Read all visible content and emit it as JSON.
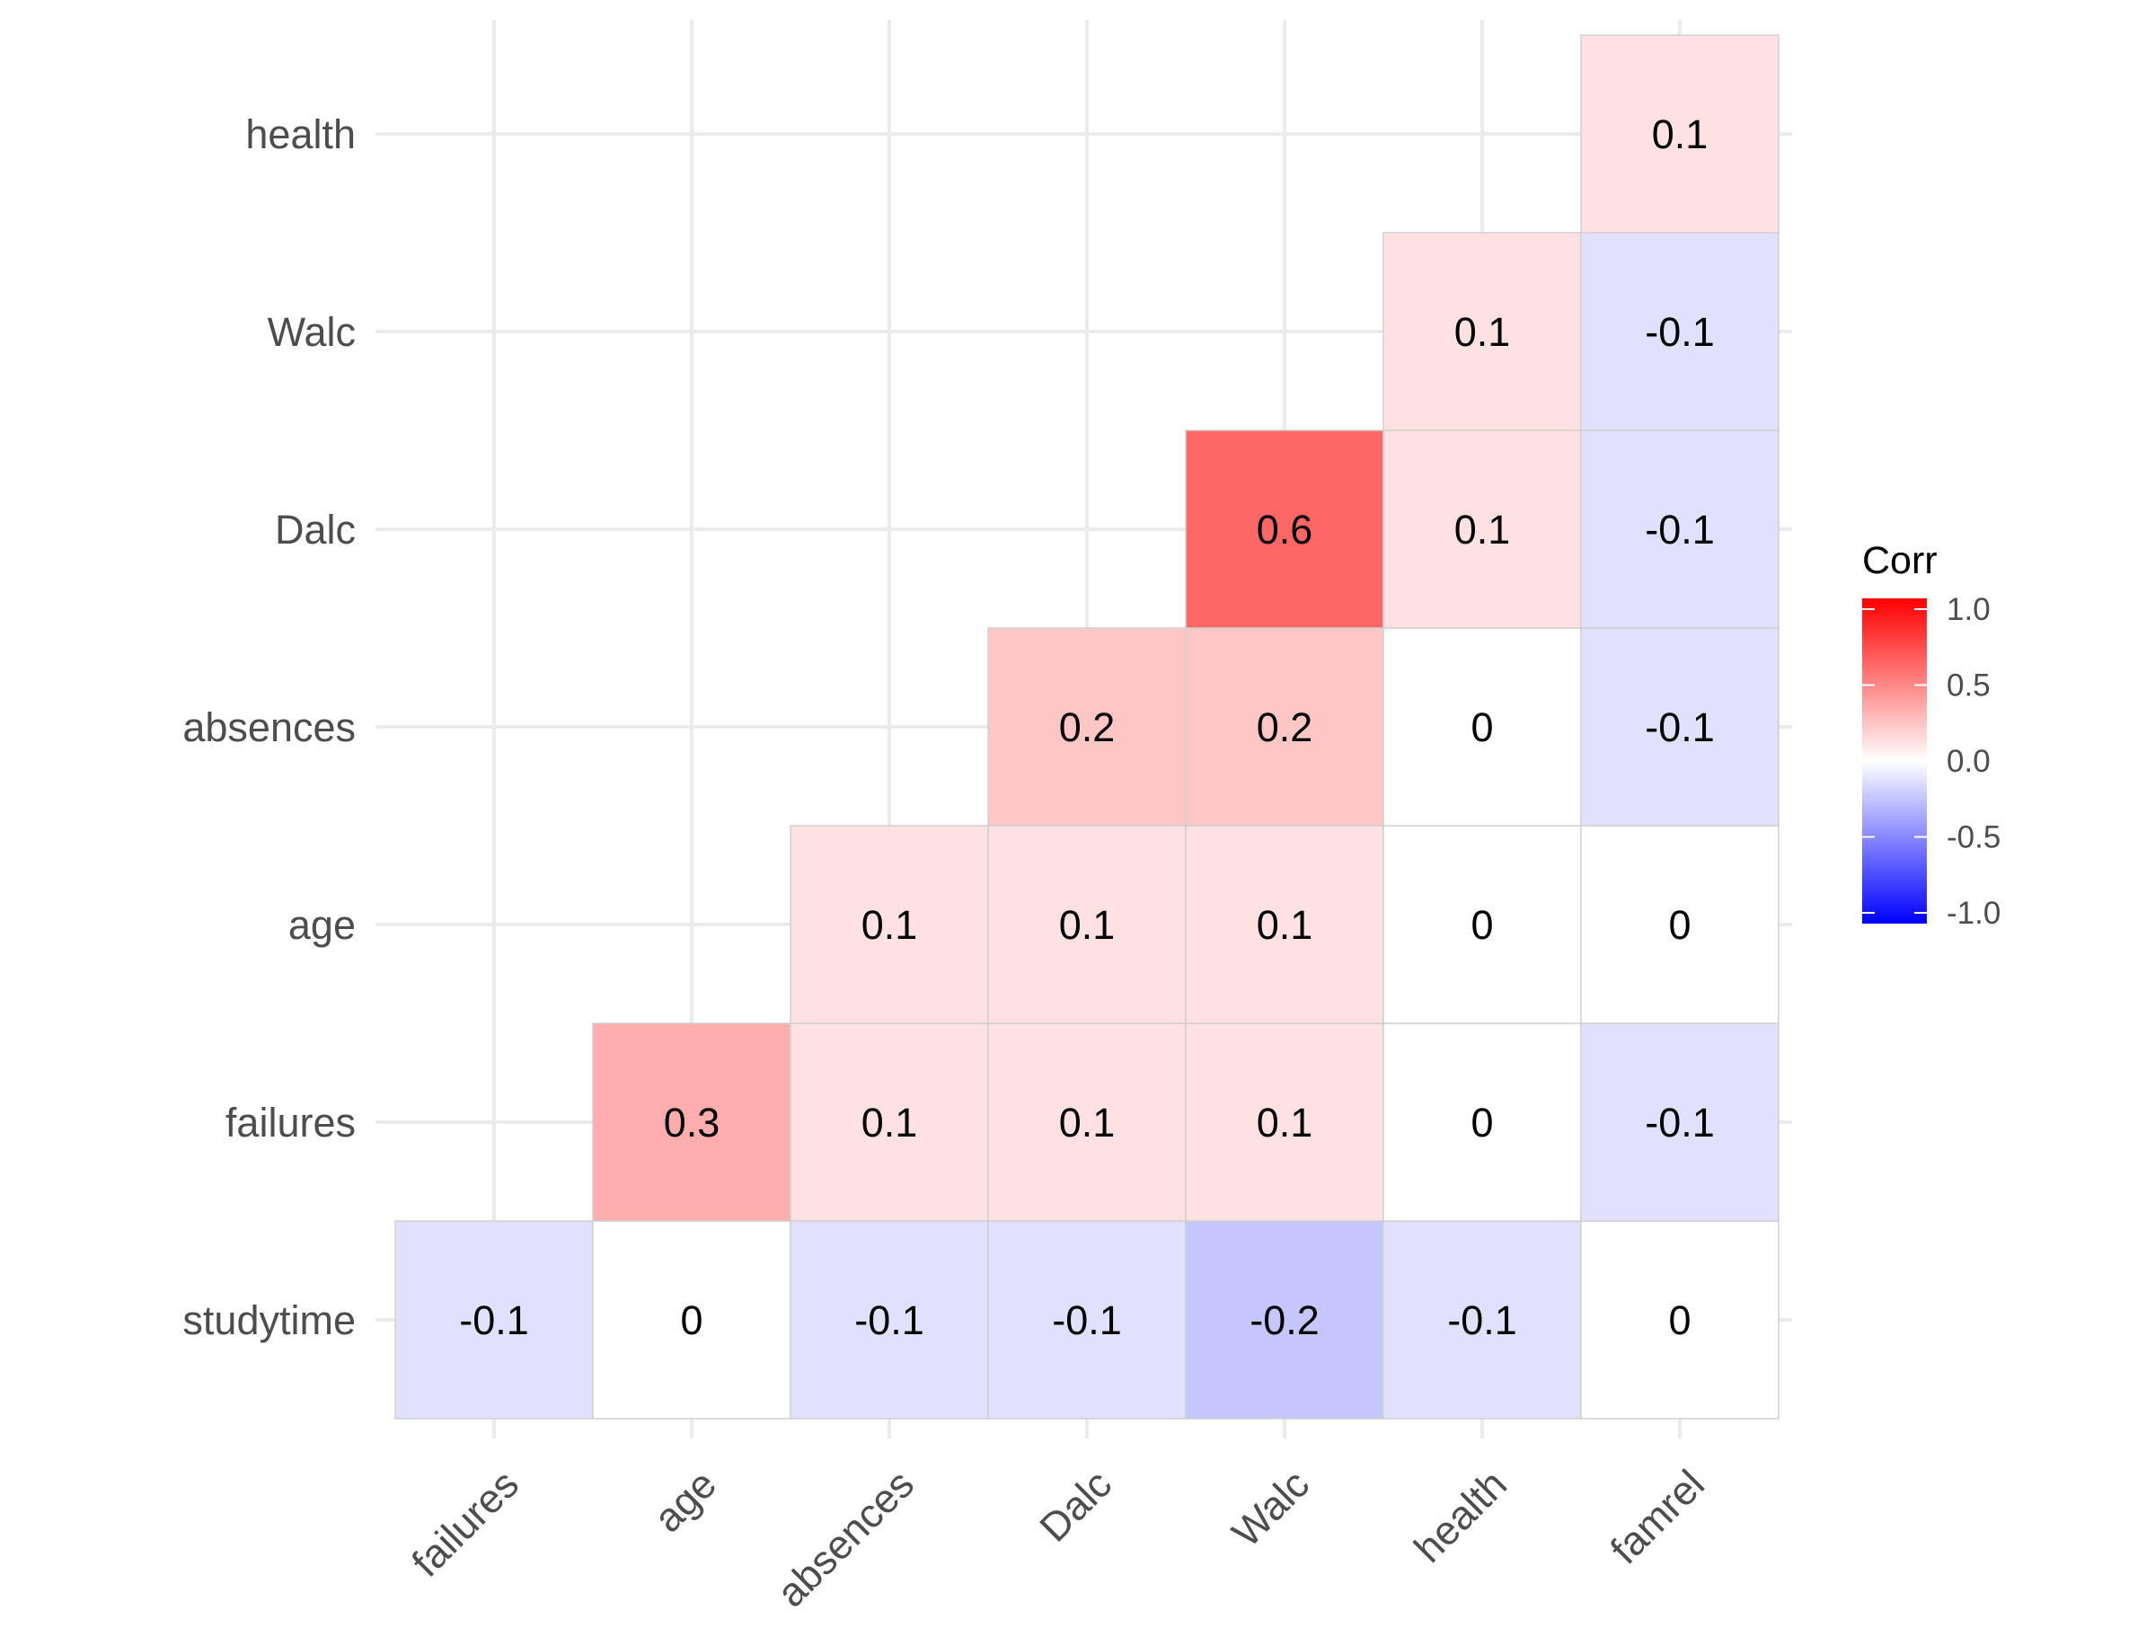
{
  "chart_data": {
    "type": "heatmap",
    "x_categories": [
      "failures",
      "age",
      "absences",
      "Dalc",
      "Walc",
      "health",
      "famrel"
    ],
    "y_categories": [
      "studytime",
      "failures",
      "age",
      "absences",
      "Dalc",
      "Walc",
      "health"
    ],
    "cells": [
      {
        "x": "failures",
        "y": "studytime",
        "value": -0.1,
        "label": "-0.1"
      },
      {
        "x": "age",
        "y": "studytime",
        "value": 0,
        "label": "0"
      },
      {
        "x": "absences",
        "y": "studytime",
        "value": -0.1,
        "label": "-0.1"
      },
      {
        "x": "Dalc",
        "y": "studytime",
        "value": -0.1,
        "label": "-0.1"
      },
      {
        "x": "Walc",
        "y": "studytime",
        "value": -0.2,
        "label": "-0.2"
      },
      {
        "x": "health",
        "y": "studytime",
        "value": -0.1,
        "label": "-0.1"
      },
      {
        "x": "famrel",
        "y": "studytime",
        "value": 0,
        "label": "0"
      },
      {
        "x": "age",
        "y": "failures",
        "value": 0.3,
        "label": "0.3"
      },
      {
        "x": "absences",
        "y": "failures",
        "value": 0.1,
        "label": "0.1"
      },
      {
        "x": "Dalc",
        "y": "failures",
        "value": 0.1,
        "label": "0.1"
      },
      {
        "x": "Walc",
        "y": "failures",
        "value": 0.1,
        "label": "0.1"
      },
      {
        "x": "health",
        "y": "failures",
        "value": 0,
        "label": "0"
      },
      {
        "x": "famrel",
        "y": "failures",
        "value": -0.1,
        "label": "-0.1"
      },
      {
        "x": "absences",
        "y": "age",
        "value": 0.1,
        "label": "0.1"
      },
      {
        "x": "Dalc",
        "y": "age",
        "value": 0.1,
        "label": "0.1"
      },
      {
        "x": "Walc",
        "y": "age",
        "value": 0.1,
        "label": "0.1"
      },
      {
        "x": "health",
        "y": "age",
        "value": 0,
        "label": "0"
      },
      {
        "x": "famrel",
        "y": "age",
        "value": 0,
        "label": "0"
      },
      {
        "x": "Dalc",
        "y": "absences",
        "value": 0.2,
        "label": "0.2"
      },
      {
        "x": "Walc",
        "y": "absences",
        "value": 0.2,
        "label": "0.2"
      },
      {
        "x": "health",
        "y": "absences",
        "value": 0,
        "label": "0"
      },
      {
        "x": "famrel",
        "y": "absences",
        "value": -0.1,
        "label": "-0.1"
      },
      {
        "x": "Walc",
        "y": "Dalc",
        "value": 0.6,
        "label": "0.6"
      },
      {
        "x": "health",
        "y": "Dalc",
        "value": 0.1,
        "label": "0.1"
      },
      {
        "x": "famrel",
        "y": "Dalc",
        "value": -0.1,
        "label": "-0.1"
      },
      {
        "x": "health",
        "y": "Walc",
        "value": 0.1,
        "label": "0.1"
      },
      {
        "x": "famrel",
        "y": "Walc",
        "value": -0.1,
        "label": "-0.1"
      },
      {
        "x": "famrel",
        "y": "health",
        "value": 0.1,
        "label": "0.1"
      }
    ],
    "color_scale": {
      "low": "#0000ff",
      "mid": "#ffffff",
      "high": "#ff0000",
      "limits": [
        -1,
        1
      ]
    },
    "legend": {
      "title": "Corr",
      "placement": "right",
      "ticks": [
        "1.0",
        "0.5",
        "0.0",
        "-0.5",
        "-1.0"
      ]
    },
    "grid": true
  }
}
